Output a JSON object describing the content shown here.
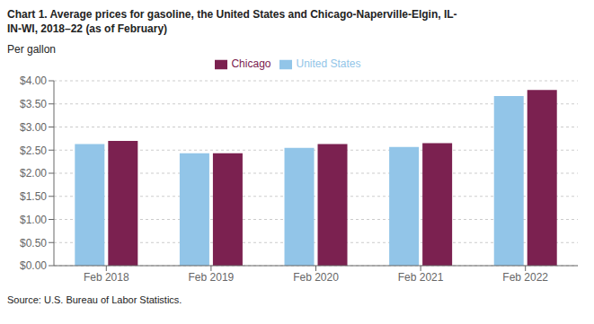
{
  "chart_data": {
    "type": "bar",
    "title": "Chart 1. Average prices for gasoline, the United States and Chicago-Naperville-Elgin, IL-\nIN-WI, 2018–22 (as of February)",
    "ylabel": "Per gallon",
    "annotations": [
      "Source: U.S. Bureau of Labor Statistics."
    ],
    "categories": [
      "Feb 2018",
      "Feb 2019",
      "Feb 2020",
      "Feb 2021",
      "Feb 2022"
    ],
    "series": [
      {
        "name": "United States",
        "color": "#92C5E8",
        "values": [
          2.63,
          2.43,
          2.55,
          2.57,
          3.67
        ]
      },
      {
        "name": "Chicago",
        "color": "#7B2150",
        "values": [
          2.7,
          2.43,
          2.63,
          2.65,
          3.8
        ]
      }
    ],
    "ylim": [
      0,
      4.0
    ],
    "yticks": [
      {
        "value": 0.0,
        "label": "$0.00"
      },
      {
        "value": 0.5,
        "label": "$0.50"
      },
      {
        "value": 1.0,
        "label": "$1.00"
      },
      {
        "value": 1.5,
        "label": "$1.50"
      },
      {
        "value": 2.0,
        "label": "$2.00"
      },
      {
        "value": 2.5,
        "label": "$2.50"
      },
      {
        "value": 3.0,
        "label": "$3.00"
      },
      {
        "value": 3.5,
        "label": "$3.50"
      },
      {
        "value": 4.0,
        "label": "$4.00"
      }
    ],
    "grid": true,
    "legend": "top"
  }
}
